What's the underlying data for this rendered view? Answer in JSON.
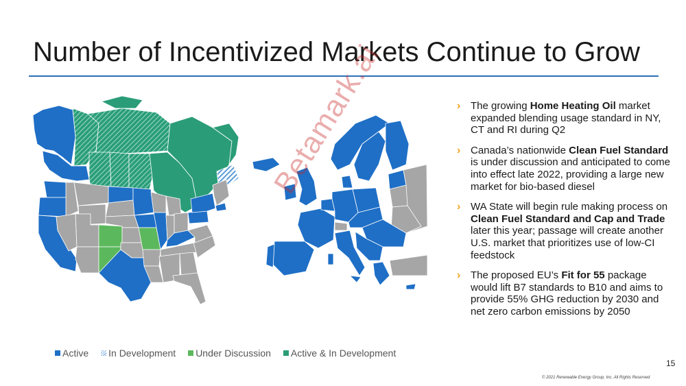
{
  "slide": {
    "title": "Number of Incentivized Markets Continue to Grow",
    "page_number": "15",
    "copyright": "© 2021 Renewable Energy Group, Inc. All Rights Reserved",
    "watermark": "Betamark.ai"
  },
  "legend": [
    {
      "label": "Active",
      "color": "#1f6fc6"
    },
    {
      "label": "In Development",
      "color": "#5b9bd5"
    },
    {
      "label": "Under Discussion",
      "color": "#5cb85c"
    },
    {
      "label": "Active & In Development",
      "color": "#2a9d78"
    }
  ],
  "map_colors": {
    "active": "#1f6fc6",
    "in_development": "#5b9bd5",
    "under_discussion": "#5cb85c",
    "active_and_in_development": "#2a9d78",
    "no_program": "#a6a6a6"
  },
  "bullets": [
    {
      "pre": "The growing ",
      "bold": "Home Heating Oil",
      "post": " market expanded blending usage standard in NY, CT and RI during Q2"
    },
    {
      "pre": "Canada’s nationwide ",
      "bold": "Clean Fuel Standard",
      "post": " is under discussion and anticipated to come into effect late 2022, providing a large new market for bio-based diesel"
    },
    {
      "pre": "WA State will begin rule making process on ",
      "bold": "Clean Fuel Standard and Cap and Trade",
      "post": " later this year; passage will create another U.S. market that prioritizes use of low-CI feedstock"
    },
    {
      "pre": "The proposed EU’s ",
      "bold": "Fit for 55",
      "post": " package would lift B7 standards to B10 and aims to provide 55% GHG reduction by 2030 and net zero carbon emissions by 2050"
    }
  ],
  "bullet_icon": "chevron-right-icon"
}
